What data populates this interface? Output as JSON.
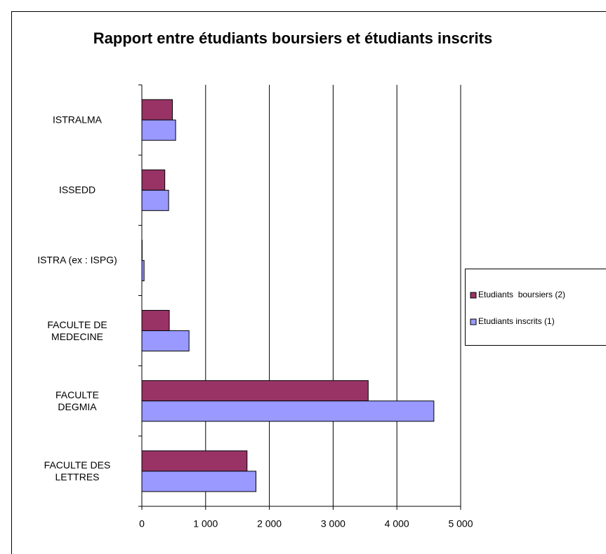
{
  "chart_data": {
    "type": "barh",
    "title": "Rapport entre étudiants boursiers et étudiants inscrits",
    "categories": [
      "ISTRALMA",
      "ISSEDD",
      "ISTRA (ex : ISPG)",
      "FACULTE DE\nMEDECINE",
      "FACULTE\nDEGMIA",
      "FACULTE DES\nLETTRES"
    ],
    "series": [
      {
        "name": "Etudiants  boursiers (2)",
        "color": "#993366",
        "values": [
          480,
          360,
          5,
          430,
          3550,
          1650
        ]
      },
      {
        "name": "Etudiants inscrits (1)",
        "color": "#9999ff",
        "values": [
          530,
          420,
          35,
          740,
          4580,
          1790
        ]
      }
    ],
    "xlim": [
      0,
      5000
    ],
    "xticks": [
      0,
      {
        "value": 1000,
        "label": "1 000"
      },
      {
        "value": 2000,
        "label": "2 000"
      },
      {
        "value": 3000,
        "label": "3 000"
      },
      {
        "value": 4000,
        "label": "4 000"
      },
      {
        "value": 5000,
        "label": "5 000"
      }
    ],
    "grid": true,
    "legend": "right"
  }
}
